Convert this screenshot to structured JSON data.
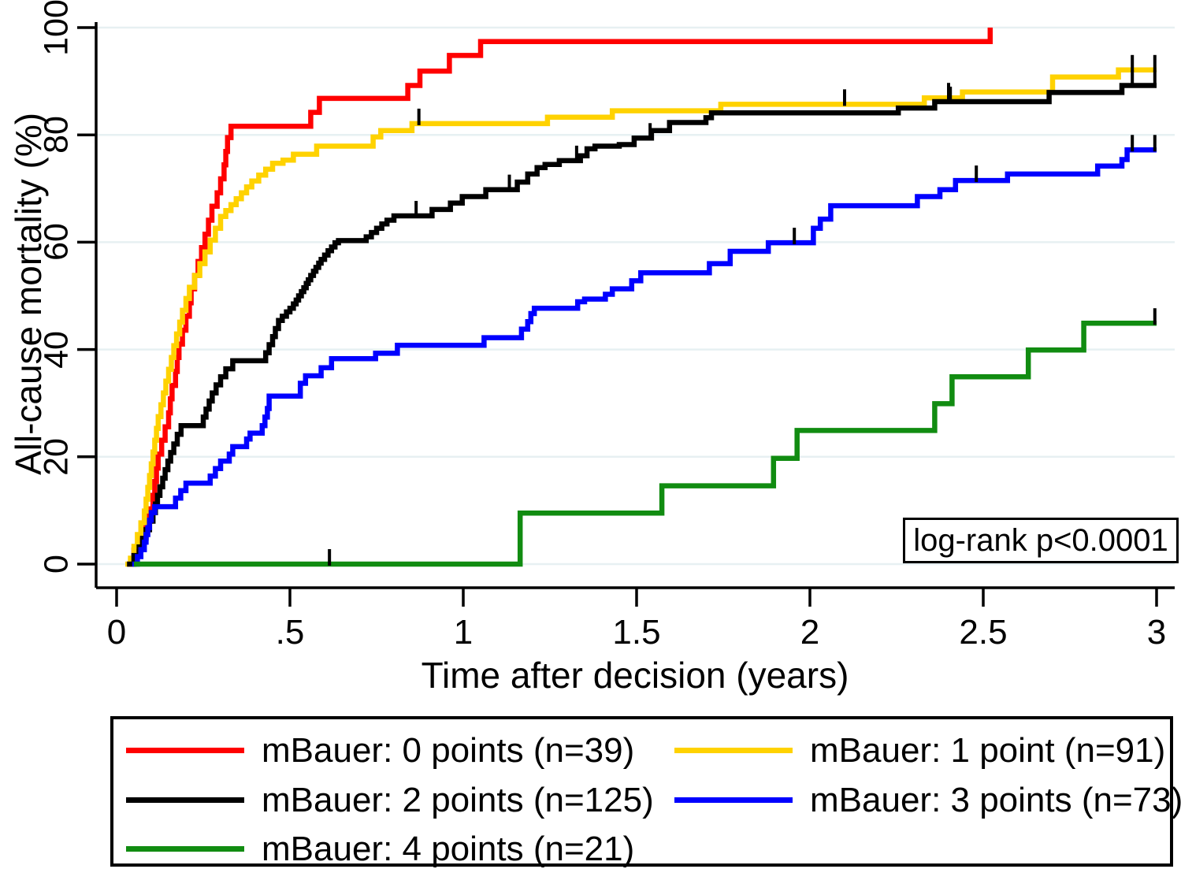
{
  "annotation": {
    "text": "log-rank p<0.0001"
  },
  "chart_data": {
    "type": "line",
    "subtype": "kaplan-meier-step",
    "title": "",
    "xlabel": "Time after decision (years)",
    "ylabel": "All-cause mortality (%)",
    "xlim": [
      0,
      3
    ],
    "ylim": [
      0,
      100
    ],
    "xticks": {
      "values": [
        0,
        0.5,
        1,
        1.5,
        2,
        2.5,
        3
      ],
      "labels": [
        "0",
        ".5",
        "1",
        "1.5",
        "2",
        "2.5",
        "3"
      ]
    },
    "yticks": {
      "values": [
        0,
        20,
        40,
        60,
        80,
        100
      ],
      "labels": [
        "0",
        "20",
        "40",
        "60",
        "80",
        "100"
      ]
    },
    "grid": true,
    "gridline_color": "#e7f0f2",
    "legend_position": "bottom",
    "annotation_text": "log-rank p<0.0001",
    "series": [
      {
        "key": "mbauer-0",
        "label": "mBauer: 0 points (n=39)",
        "n": 39,
        "color": "#ff0000",
        "end": 2.52,
        "points": [
          [
            0.03,
            0
          ],
          [
            0.05,
            2.6
          ],
          [
            0.07,
            5.1
          ],
          [
            0.085,
            7.7
          ],
          [
            0.095,
            10.3
          ],
          [
            0.105,
            12.8
          ],
          [
            0.11,
            15.4
          ],
          [
            0.115,
            17.9
          ],
          [
            0.12,
            20.5
          ],
          [
            0.13,
            23.1
          ],
          [
            0.14,
            25.6
          ],
          [
            0.15,
            28.2
          ],
          [
            0.155,
            30.8
          ],
          [
            0.16,
            33.3
          ],
          [
            0.17,
            35.9
          ],
          [
            0.175,
            38.5
          ],
          [
            0.18,
            41.0
          ],
          [
            0.19,
            43.6
          ],
          [
            0.2,
            46.2
          ],
          [
            0.21,
            48.7
          ],
          [
            0.215,
            51.3
          ],
          [
            0.225,
            53.8
          ],
          [
            0.235,
            56.4
          ],
          [
            0.245,
            59.0
          ],
          [
            0.255,
            61.5
          ],
          [
            0.265,
            64.1
          ],
          [
            0.275,
            66.7
          ],
          [
            0.29,
            69.2
          ],
          [
            0.3,
            71.8
          ],
          [
            0.31,
            74.4
          ],
          [
            0.315,
            76.9
          ],
          [
            0.32,
            79.5
          ],
          [
            0.33,
            81.6
          ],
          [
            0.56,
            84.2
          ],
          [
            0.585,
            86.8
          ],
          [
            0.84,
            89.2
          ],
          [
            0.875,
            91.9
          ],
          [
            0.96,
            94.8
          ],
          [
            1.05,
            97.4
          ],
          [
            2.52,
            100
          ]
        ],
        "censors": []
      },
      {
        "key": "mbauer-1",
        "label": "mBauer: 1 point (n=91)",
        "n": 91,
        "color": "#ffd200",
        "end": 3.0,
        "points": [
          [
            0.025,
            0
          ],
          [
            0.04,
            1.1
          ],
          [
            0.05,
            3.3
          ],
          [
            0.06,
            5.5
          ],
          [
            0.07,
            7.7
          ],
          [
            0.08,
            9.9
          ],
          [
            0.085,
            12.1
          ],
          [
            0.09,
            14.3
          ],
          [
            0.095,
            16.5
          ],
          [
            0.1,
            18.7
          ],
          [
            0.105,
            20.9
          ],
          [
            0.11,
            23.1
          ],
          [
            0.115,
            25.3
          ],
          [
            0.12,
            27.5
          ],
          [
            0.128,
            29.7
          ],
          [
            0.135,
            31.9
          ],
          [
            0.142,
            34.1
          ],
          [
            0.15,
            36.3
          ],
          [
            0.158,
            38.5
          ],
          [
            0.165,
            40.7
          ],
          [
            0.173,
            42.9
          ],
          [
            0.182,
            45.1
          ],
          [
            0.19,
            47.3
          ],
          [
            0.2,
            49.5
          ],
          [
            0.21,
            51.6
          ],
          [
            0.225,
            53.8
          ],
          [
            0.24,
            56.0
          ],
          [
            0.255,
            58.2
          ],
          [
            0.27,
            60.4
          ],
          [
            0.285,
            62.6
          ],
          [
            0.3,
            64.8
          ],
          [
            0.315,
            65.9
          ],
          [
            0.33,
            67.0
          ],
          [
            0.345,
            68.1
          ],
          [
            0.36,
            69.2
          ],
          [
            0.375,
            70.3
          ],
          [
            0.39,
            71.4
          ],
          [
            0.41,
            72.5
          ],
          [
            0.43,
            73.6
          ],
          [
            0.45,
            74.7
          ],
          [
            0.48,
            75.3
          ],
          [
            0.51,
            76.4
          ],
          [
            0.577,
            77.9
          ],
          [
            0.74,
            79.6
          ],
          [
            0.762,
            80.8
          ],
          [
            0.852,
            82.1
          ],
          [
            1.243,
            83.3
          ],
          [
            1.43,
            84.5
          ],
          [
            1.743,
            85.7
          ],
          [
            2.33,
            86.9
          ],
          [
            2.44,
            88.0
          ],
          [
            2.7,
            90.8
          ],
          [
            2.89,
            92.1
          ]
        ],
        "censors": [
          [
            0.872,
            82.1
          ],
          [
            2.1,
            85.7
          ],
          [
            2.4,
            86.9
          ],
          [
            2.93,
            92.1
          ],
          [
            2.995,
            92.1
          ]
        ]
      },
      {
        "key": "mbauer-2",
        "label": "mBauer: 2 points (n=125)",
        "n": 125,
        "color": "#000000",
        "end": 3.0,
        "points": [
          [
            0.03,
            0
          ],
          [
            0.05,
            1.6
          ],
          [
            0.065,
            3.2
          ],
          [
            0.075,
            4.8
          ],
          [
            0.085,
            6.4
          ],
          [
            0.095,
            8.0
          ],
          [
            0.105,
            9.6
          ],
          [
            0.112,
            11.2
          ],
          [
            0.118,
            12.8
          ],
          [
            0.125,
            14.4
          ],
          [
            0.133,
            16.0
          ],
          [
            0.14,
            17.6
          ],
          [
            0.148,
            19.2
          ],
          [
            0.156,
            20.8
          ],
          [
            0.165,
            22.4
          ],
          [
            0.175,
            24.2
          ],
          [
            0.186,
            25.8
          ],
          [
            0.25,
            27.4
          ],
          [
            0.258,
            28.9
          ],
          [
            0.267,
            30.4
          ],
          [
            0.276,
            31.9
          ],
          [
            0.287,
            33.4
          ],
          [
            0.3,
            34.9
          ],
          [
            0.315,
            36.4
          ],
          [
            0.335,
            37.9
          ],
          [
            0.43,
            39.4
          ],
          [
            0.44,
            40.9
          ],
          [
            0.45,
            42.4
          ],
          [
            0.458,
            43.9
          ],
          [
            0.467,
            45.4
          ],
          [
            0.478,
            46.2
          ],
          [
            0.49,
            47.0
          ],
          [
            0.5,
            47.7
          ],
          [
            0.51,
            48.5
          ],
          [
            0.518,
            49.2
          ],
          [
            0.525,
            50.0
          ],
          [
            0.533,
            50.8
          ],
          [
            0.54,
            51.5
          ],
          [
            0.547,
            52.3
          ],
          [
            0.553,
            53.0
          ],
          [
            0.56,
            53.8
          ],
          [
            0.568,
            54.6
          ],
          [
            0.575,
            55.3
          ],
          [
            0.583,
            56.1
          ],
          [
            0.59,
            56.8
          ],
          [
            0.6,
            57.6
          ],
          [
            0.61,
            58.4
          ],
          [
            0.62,
            59.1
          ],
          [
            0.63,
            59.9
          ],
          [
            0.64,
            60.3
          ],
          [
            0.72,
            61.0
          ],
          [
            0.735,
            61.8
          ],
          [
            0.75,
            62.6
          ],
          [
            0.765,
            63.4
          ],
          [
            0.78,
            64.1
          ],
          [
            0.8,
            64.9
          ],
          [
            0.91,
            66.1
          ],
          [
            0.963,
            67.3
          ],
          [
            0.997,
            68.5
          ],
          [
            1.065,
            69.8
          ],
          [
            1.156,
            71.2
          ],
          [
            1.186,
            72.7
          ],
          [
            1.213,
            73.9
          ],
          [
            1.236,
            74.5
          ],
          [
            1.277,
            75.2
          ],
          [
            1.338,
            76.1
          ],
          [
            1.357,
            77.4
          ],
          [
            1.38,
            77.9
          ],
          [
            1.45,
            78.2
          ],
          [
            1.493,
            79.4
          ],
          [
            1.543,
            80.8
          ],
          [
            1.595,
            82.3
          ],
          [
            1.7,
            83.2
          ],
          [
            1.716,
            84.1
          ],
          [
            2.255,
            85.0
          ],
          [
            2.36,
            86.2
          ],
          [
            2.69,
            87.9
          ],
          [
            2.9,
            89.2
          ]
        ],
        "censors": [
          [
            0.864,
            64.9
          ],
          [
            1.133,
            69.8
          ],
          [
            1.327,
            75.2
          ],
          [
            1.539,
            79.4
          ],
          [
            2.405,
            86.2
          ],
          [
            2.93,
            89.2
          ],
          [
            2.995,
            89.2
          ]
        ]
      },
      {
        "key": "mbauer-3",
        "label": "mBauer: 3 points (n=73)",
        "n": 73,
        "color": "#0000ff",
        "end": 3.0,
        "points": [
          [
            0.045,
            0
          ],
          [
            0.06,
            1.4
          ],
          [
            0.07,
            2.7
          ],
          [
            0.08,
            4.1
          ],
          [
            0.085,
            5.5
          ],
          [
            0.09,
            6.8
          ],
          [
            0.095,
            8.2
          ],
          [
            0.1,
            9.6
          ],
          [
            0.11,
            10.7
          ],
          [
            0.17,
            12.3
          ],
          [
            0.185,
            13.7
          ],
          [
            0.2,
            15.1
          ],
          [
            0.27,
            16.4
          ],
          [
            0.285,
            17.8
          ],
          [
            0.3,
            19.2
          ],
          [
            0.325,
            20.5
          ],
          [
            0.335,
            21.9
          ],
          [
            0.375,
            23.3
          ],
          [
            0.385,
            24.4
          ],
          [
            0.42,
            25.8
          ],
          [
            0.428,
            27.4
          ],
          [
            0.435,
            29.0
          ],
          [
            0.44,
            31.3
          ],
          [
            0.53,
            33.7
          ],
          [
            0.545,
            35.1
          ],
          [
            0.59,
            36.6
          ],
          [
            0.62,
            38.3
          ],
          [
            0.747,
            39.3
          ],
          [
            0.81,
            40.8
          ],
          [
            1.06,
            42.2
          ],
          [
            1.168,
            43.8
          ],
          [
            1.186,
            45.2
          ],
          [
            1.195,
            46.7
          ],
          [
            1.205,
            47.7
          ],
          [
            1.33,
            48.9
          ],
          [
            1.35,
            49.4
          ],
          [
            1.41,
            50.3
          ],
          [
            1.43,
            51.3
          ],
          [
            1.486,
            52.8
          ],
          [
            1.512,
            54.3
          ],
          [
            1.71,
            56.0
          ],
          [
            1.77,
            58.3
          ],
          [
            1.88,
            59.9
          ],
          [
            2.01,
            62.6
          ],
          [
            2.03,
            64.3
          ],
          [
            2.06,
            66.8
          ],
          [
            2.31,
            68.5
          ],
          [
            2.375,
            69.8
          ],
          [
            2.42,
            71.5
          ],
          [
            2.57,
            72.7
          ],
          [
            2.83,
            74.2
          ],
          [
            2.9,
            75.4
          ],
          [
            2.915,
            77.2
          ]
        ],
        "censors": [
          [
            1.955,
            59.9
          ],
          [
            2.48,
            71.5
          ],
          [
            2.93,
            77.2
          ],
          [
            2.995,
            77.2
          ]
        ]
      },
      {
        "key": "mbauer-4",
        "label": "mBauer: 4 points (n=21)",
        "n": 21,
        "color": "#118c11",
        "end": 3.0,
        "points": [
          [
            0.05,
            0
          ],
          [
            1.164,
            9.5
          ],
          [
            1.573,
            14.6
          ],
          [
            1.895,
            19.7
          ],
          [
            1.963,
            24.9
          ],
          [
            2.36,
            29.9
          ],
          [
            2.41,
            34.9
          ],
          [
            2.63,
            39.9
          ],
          [
            2.79,
            44.9
          ]
        ],
        "censors": [
          [
            0.614,
            0
          ],
          [
            2.995,
            44.9
          ]
        ]
      }
    ]
  },
  "legend": {
    "items": [
      {
        "label": "mBauer: 0 points (n=39)",
        "color": "#ff0000"
      },
      {
        "label": "mBauer: 1 point (n=91)",
        "color": "#ffd200"
      },
      {
        "label": "mBauer: 2 points (n=125)",
        "color": "#000000"
      },
      {
        "label": "mBauer: 3 points (n=73)",
        "color": "#0000ff"
      },
      {
        "label": "mBauer: 4 points (n=21)",
        "color": "#118c11"
      }
    ]
  }
}
